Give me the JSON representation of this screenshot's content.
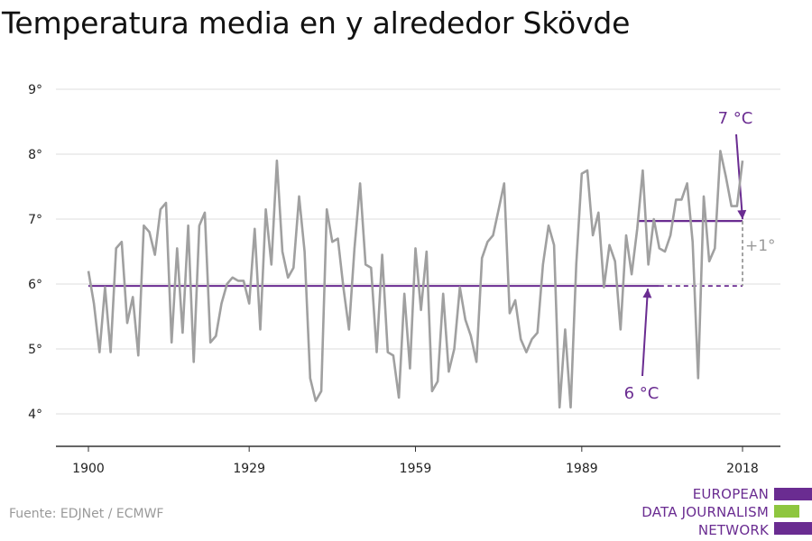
{
  "title": "Temperatura media en y alrededor Skövde",
  "source": "Fuente: EDJNet / ECMWF",
  "logo": {
    "line1": "EUROPEAN",
    "line2": "DATA JOURNALISM",
    "line3": "NETWORK"
  },
  "colors": {
    "series": "#a0a0a0",
    "accent": "#6a2c91",
    "grid": "#dddddd",
    "axis": "#333333",
    "delta": "#999999",
    "logo_purple": "#6a2c91",
    "logo_green": "#8ec63f"
  },
  "chart_data": {
    "type": "line",
    "title": "Temperatura media en y alrededor Skövde",
    "xlabel": "",
    "ylabel": "",
    "xlim": [
      1900,
      2018
    ],
    "ylim": [
      3.5,
      9.5
    ],
    "x_ticks": [
      1900,
      1929,
      1959,
      1989,
      2018
    ],
    "x_tick_labels": [
      "1900",
      "1929",
      "1959",
      "1989",
      "2018"
    ],
    "y_ticks": [
      4,
      5,
      6,
      7,
      8,
      9
    ],
    "y_tick_labels": [
      "4°",
      "5°",
      "6°",
      "7°",
      "8°",
      "9°"
    ],
    "grid": true,
    "series": [
      {
        "x": [
          1900,
          1901,
          1902,
          1903,
          1904,
          1905,
          1906,
          1907,
          1908,
          1909,
          1910,
          1911,
          1912,
          1913,
          1914,
          1915,
          1916,
          1917,
          1918,
          1919,
          1920,
          1921,
          1922,
          1923,
          1924,
          1925,
          1926,
          1927,
          1928,
          1929,
          1930,
          1931,
          1932,
          1933,
          1934,
          1935,
          1936,
          1937,
          1938,
          1939,
          1940,
          1941,
          1942,
          1943,
          1944,
          1945,
          1946,
          1947,
          1948,
          1949,
          1950,
          1951,
          1952,
          1953,
          1954,
          1955,
          1956,
          1957,
          1958,
          1959,
          1960,
          1961,
          1962,
          1963,
          1964,
          1965,
          1966,
          1967,
          1968,
          1969,
          1970,
          1971,
          1972,
          1973,
          1974,
          1975,
          1976,
          1977,
          1978,
          1979,
          1980,
          1981,
          1982,
          1983,
          1984,
          1985,
          1986,
          1987,
          1988,
          1989,
          1990,
          1991,
          1992,
          1993,
          1994,
          1995,
          1996,
          1997,
          1998,
          1999,
          2000,
          2001,
          2002,
          2003,
          2004,
          2005,
          2006,
          2007,
          2008,
          2009,
          2010,
          2011,
          2012,
          2013,
          2014,
          2015,
          2016,
          2017,
          2018
        ],
        "values": [
          6.2,
          5.7,
          4.95,
          5.95,
          4.95,
          6.55,
          6.65,
          5.4,
          5.8,
          4.9,
          6.9,
          6.8,
          6.45,
          7.15,
          7.25,
          5.1,
          6.55,
          5.25,
          6.9,
          4.8,
          6.9,
          7.1,
          5.1,
          5.2,
          5.7,
          6.0,
          6.1,
          6.05,
          6.05,
          5.7,
          6.85,
          5.3,
          7.15,
          6.3,
          7.9,
          6.5,
          6.1,
          6.25,
          7.35,
          6.5,
          4.55,
          4.2,
          4.35,
          7.15,
          6.65,
          6.7,
          5.95,
          5.3,
          6.55,
          7.55,
          6.3,
          6.25,
          4.95,
          6.45,
          4.95,
          4.9,
          4.25,
          5.85,
          4.7,
          6.55,
          5.6,
          6.5,
          4.35,
          4.5,
          5.85,
          4.65,
          5.0,
          5.95,
          5.45,
          5.2,
          4.8,
          6.4,
          6.65,
          6.75,
          7.15,
          7.55,
          5.55,
          5.75,
          5.15,
          4.95,
          5.15,
          5.25,
          6.3,
          6.9,
          6.6,
          4.1,
          5.3,
          4.1,
          6.3,
          7.7,
          7.75,
          6.75,
          7.1,
          5.95,
          6.6,
          6.35,
          5.3,
          6.75,
          6.15,
          6.85,
          7.75,
          6.3,
          7.0,
          6.55,
          6.5,
          6.75,
          7.3,
          7.3,
          7.55,
          6.65,
          4.55,
          7.35,
          6.35,
          6.55,
          8.05,
          7.65,
          7.2,
          7.2,
          7.9
        ]
      }
    ],
    "reference_lines": [
      {
        "label": "6 °C",
        "value": 5.97
      },
      {
        "label": "7 °C",
        "value": 6.97
      }
    ],
    "delta_label": "+1°"
  }
}
